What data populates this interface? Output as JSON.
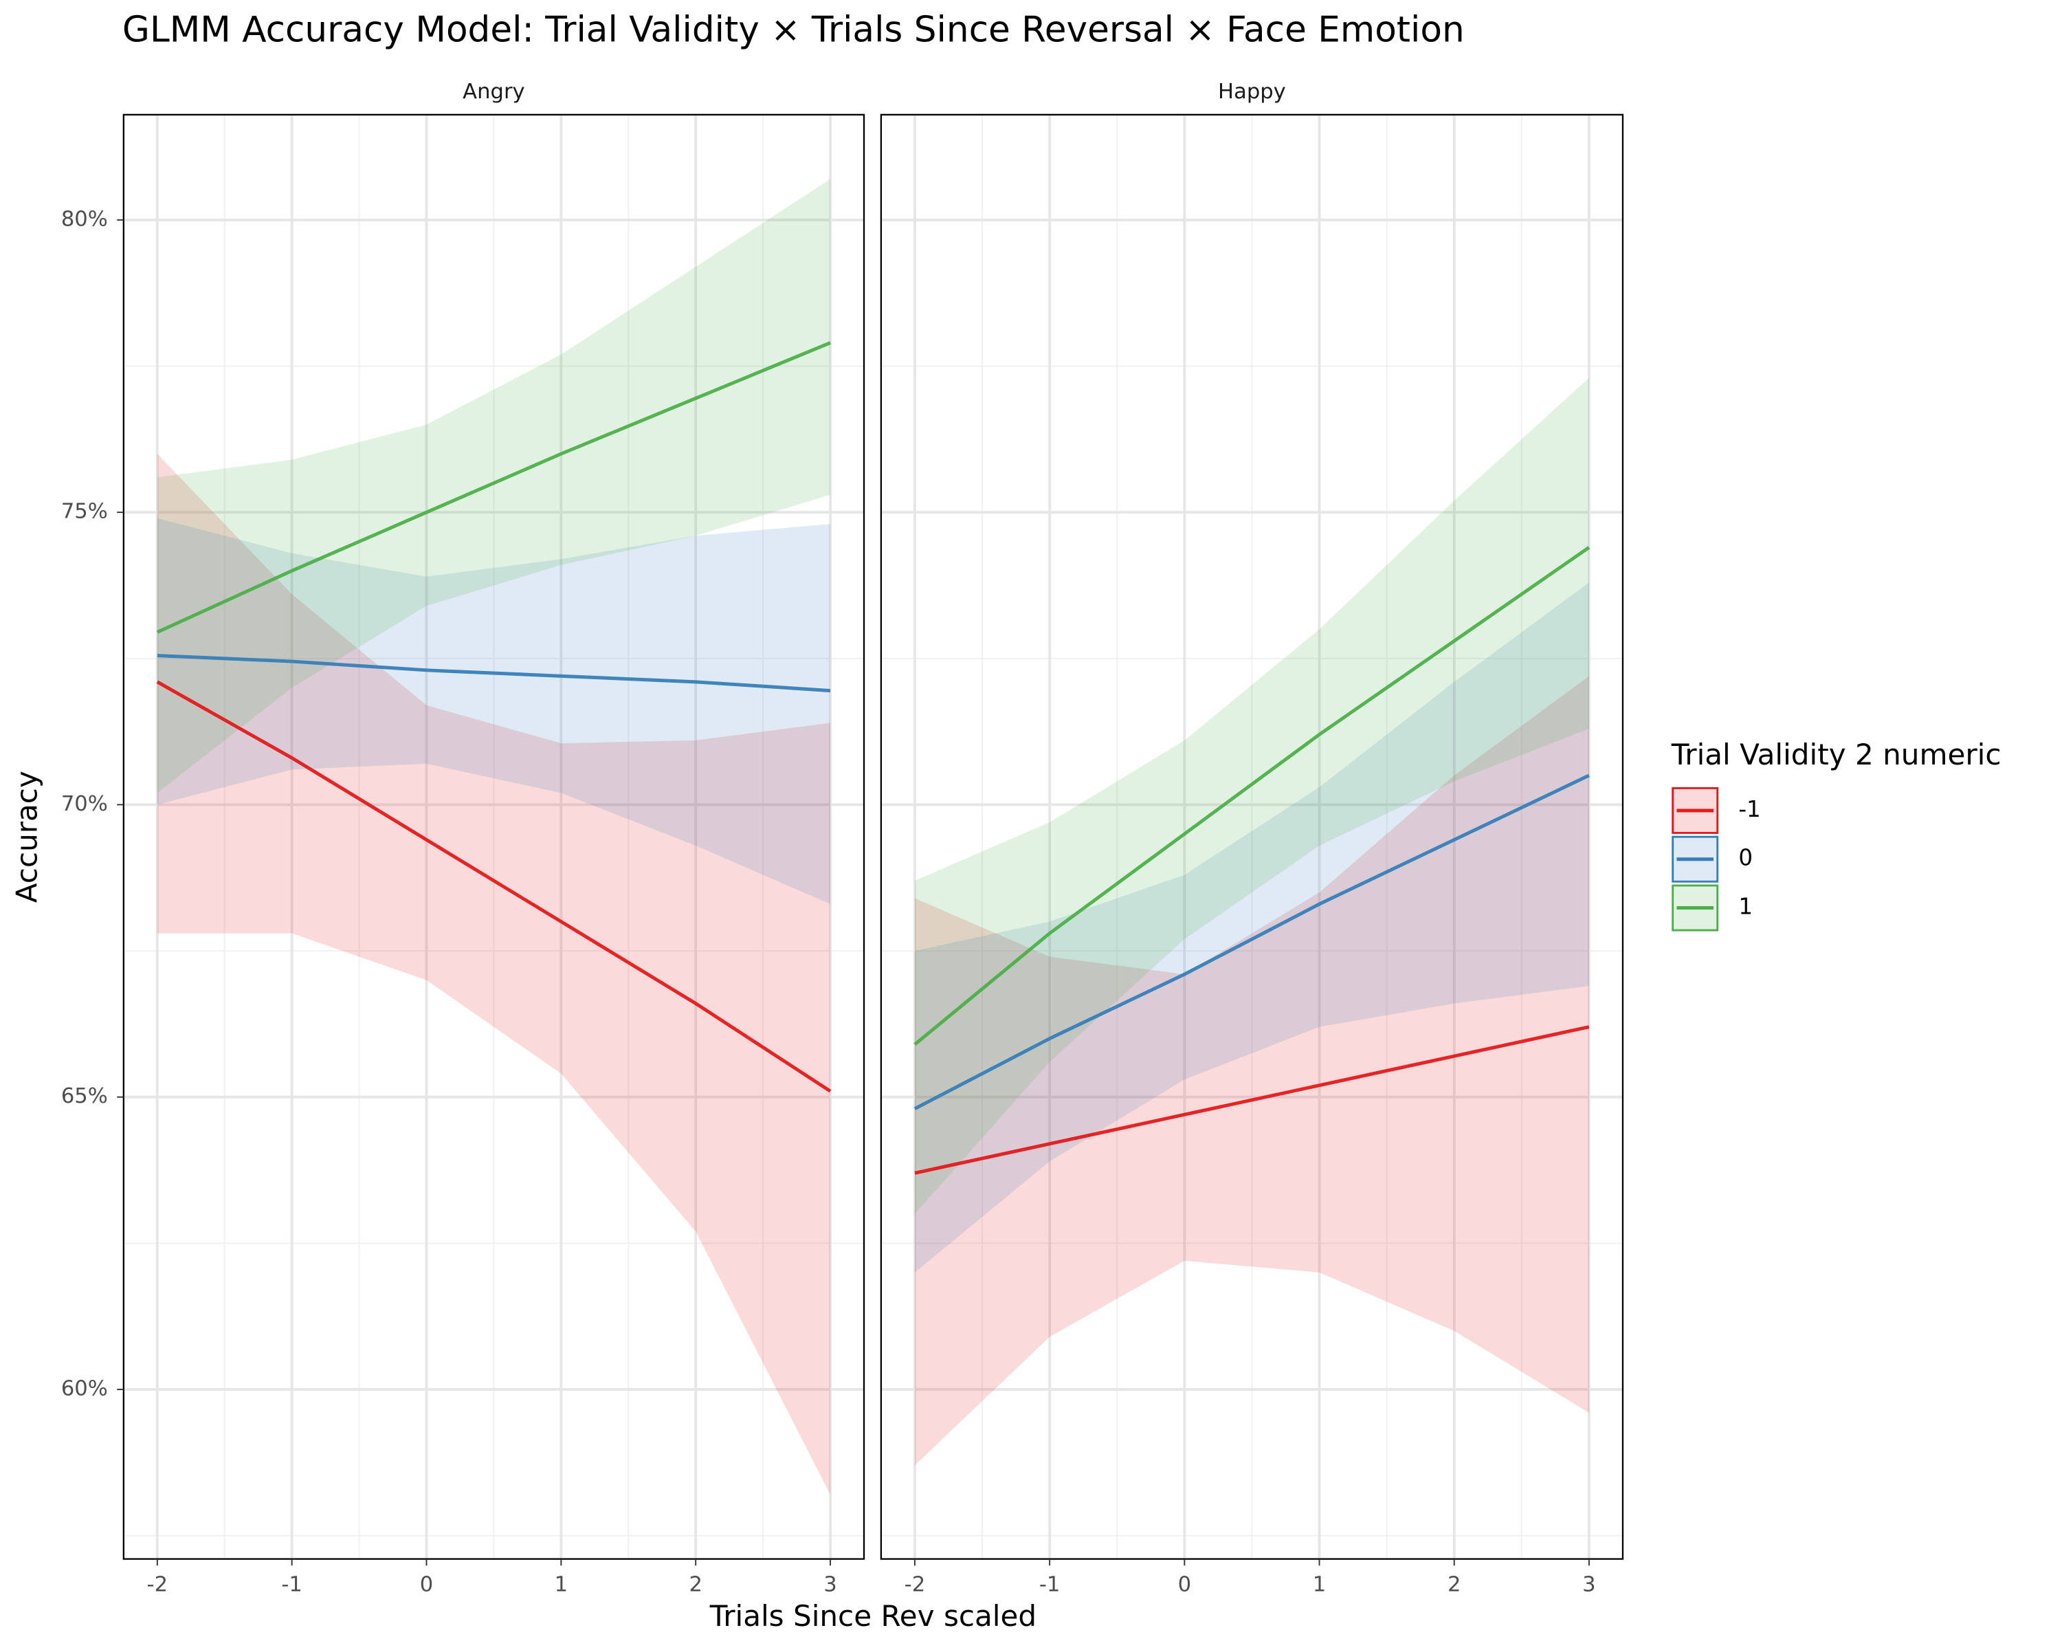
{
  "chart_data": {
    "type": "line",
    "title": "GLMM Accuracy Model: Trial Validity × Trials Since Reversal × Face Emotion",
    "xlabel": "Trials Since Rev scaled",
    "ylabel": "Accuracy",
    "legend_title": "Trial Validity 2 numeric",
    "series_names": [
      "-1",
      "0",
      "1"
    ],
    "colors": [
      "#e41a1c",
      "#377eb8",
      "#4daf4a"
    ],
    "x": [
      -2,
      -1,
      0,
      1,
      2,
      3
    ],
    "xlim": [
      -2.25,
      3.25
    ],
    "ylim": [
      57.1,
      81.8
    ],
    "xticks": [
      -2,
      -1,
      0,
      1,
      2,
      3
    ],
    "x_minor_ticks": [
      -1.5,
      -0.5,
      0.5,
      1.5,
      2.5
    ],
    "yticks": [
      {
        "value": 60,
        "label": "60%"
      },
      {
        "value": 65,
        "label": "65%"
      },
      {
        "value": 70,
        "label": "70%"
      },
      {
        "value": 75,
        "label": "75%"
      },
      {
        "value": 80,
        "label": "80%"
      }
    ],
    "y_minor_ticks": [
      57.5,
      62.5,
      67.5,
      72.5,
      77.5
    ],
    "grid": true,
    "panels": [
      {
        "title": "Angry",
        "values": [
          [
            72.1,
            70.8,
            69.4,
            68.0,
            66.6,
            65.1
          ],
          [
            72.55,
            72.45,
            72.3,
            72.2,
            72.1,
            71.95
          ],
          [
            72.95,
            74.0,
            75.0,
            76.0,
            76.95,
            77.9
          ]
        ],
        "lower": [
          [
            67.8,
            67.8,
            67.0,
            65.4,
            62.7,
            58.2
          ],
          [
            70.0,
            70.6,
            70.7,
            70.2,
            69.3,
            68.3
          ],
          [
            70.2,
            72.0,
            73.4,
            74.1,
            74.6,
            75.3
          ]
        ],
        "upper": [
          [
            76.0,
            73.6,
            71.7,
            71.05,
            71.1,
            71.4
          ],
          [
            74.9,
            74.3,
            73.9,
            74.2,
            74.6,
            74.8
          ],
          [
            75.6,
            75.9,
            76.5,
            77.7,
            79.2,
            80.7
          ]
        ]
      },
      {
        "title": "Happy",
        "values": [
          [
            63.7,
            64.2,
            64.7,
            65.2,
            65.7,
            66.2
          ],
          [
            64.8,
            66.0,
            67.1,
            68.3,
            69.4,
            70.5
          ],
          [
            65.9,
            67.8,
            69.5,
            71.2,
            72.8,
            74.4
          ]
        ],
        "lower": [
          [
            58.7,
            60.9,
            62.2,
            62.0,
            61.0,
            59.6
          ],
          [
            62.0,
            63.9,
            65.3,
            66.2,
            66.6,
            66.9
          ],
          [
            63.0,
            65.6,
            67.7,
            69.3,
            70.4,
            71.3
          ]
        ],
        "upper": [
          [
            68.4,
            67.4,
            67.1,
            68.5,
            70.5,
            72.2
          ],
          [
            67.5,
            68.0,
            68.8,
            70.3,
            72.1,
            73.8
          ],
          [
            68.7,
            69.7,
            71.1,
            73.0,
            75.2,
            77.3
          ]
        ]
      }
    ]
  }
}
